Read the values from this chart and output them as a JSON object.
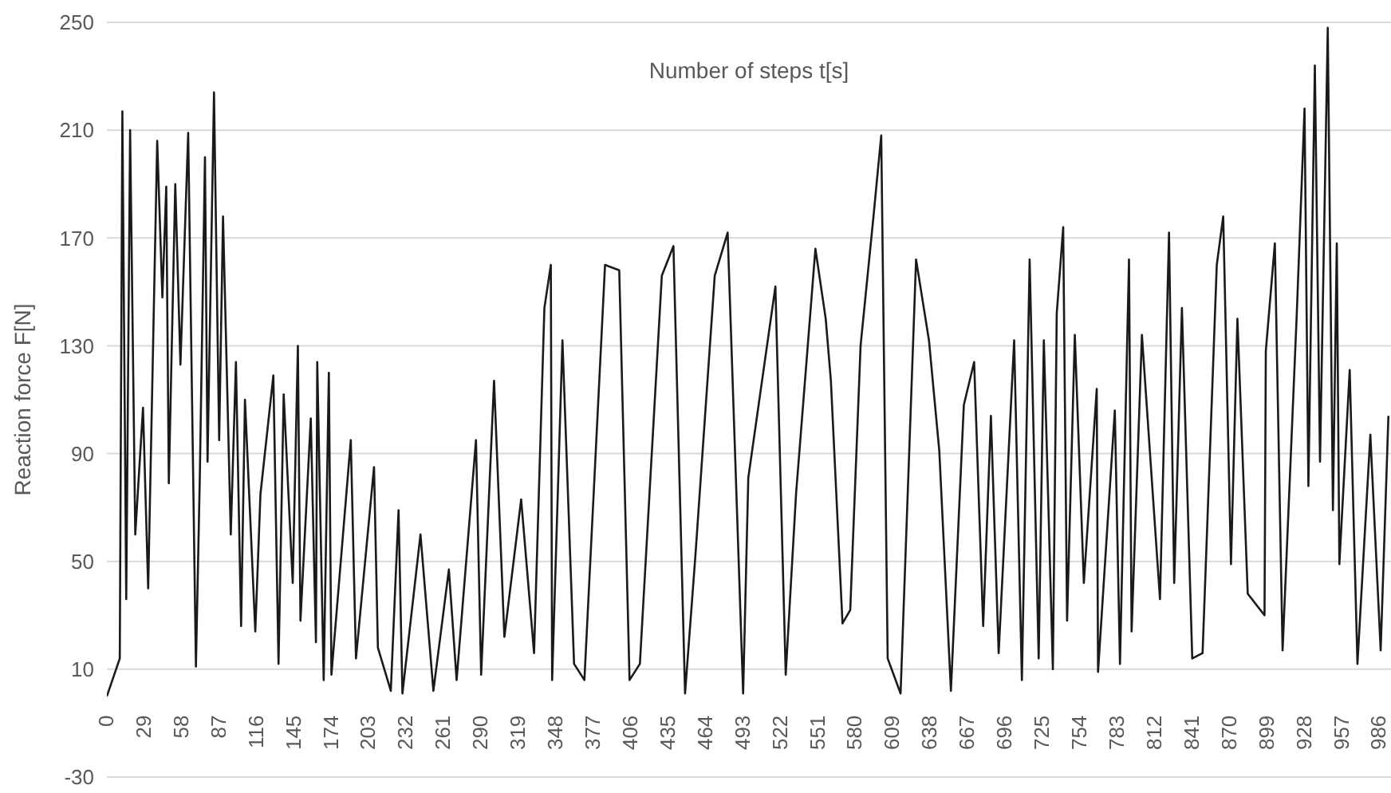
{
  "chart_data": {
    "type": "line",
    "title": "Number of steps t[s]",
    "ylabel": "Reaction force F[N]",
    "xlim": [
      0,
      995
    ],
    "xticks": [
      0,
      29,
      58,
      87,
      116,
      145,
      174,
      203,
      232,
      261,
      290,
      319,
      348,
      377,
      406,
      435,
      464,
      493,
      522,
      551,
      580,
      609,
      638,
      667,
      696,
      725,
      754,
      783,
      812,
      841,
      870,
      899,
      928,
      957,
      986
    ],
    "ylim": [
      -30,
      250
    ],
    "yticks": [
      -30,
      10,
      50,
      90,
      130,
      170,
      210,
      250
    ],
    "grid": "y",
    "series": [
      {
        "color": "#1a1a1a",
        "x": [
          0,
          10,
          12,
          15,
          18,
          22,
          28,
          32,
          39,
          43,
          46,
          48,
          53,
          57,
          63,
          69,
          72,
          76,
          78,
          83,
          87,
          90,
          96,
          100,
          104,
          107,
          115,
          119,
          129,
          133,
          137,
          144,
          148,
          150,
          158,
          162,
          163,
          168,
          172,
          174,
          189,
          193,
          207,
          210,
          220,
          226,
          229,
          243,
          253,
          265,
          271,
          286,
          290,
          300,
          308,
          321,
          331,
          339,
          344,
          345,
          353,
          362,
          370,
          386,
          397,
          405,
          413,
          430,
          439,
          448,
          456,
          471,
          481,
          493,
          497,
          518,
          526,
          534,
          549,
          557,
          561,
          570,
          576,
          584,
          594,
          600,
          605,
          615,
          627,
          637,
          645,
          654,
          664,
          672,
          679,
          685,
          691,
          703,
          709,
          715,
          722,
          726,
          733,
          736,
          741,
          744,
          750,
          757,
          767,
          768,
          781,
          785,
          792,
          794,
          802,
          816,
          823,
          827,
          833,
          841,
          849,
          860,
          865,
          871,
          876,
          884,
          897,
          898,
          905,
          911,
          922,
          928,
          931,
          936,
          940,
          946,
          950,
          953,
          955,
          963,
          969,
          979,
          987,
          993
        ],
        "values": [
          0,
          14,
          217,
          36,
          210,
          60,
          107,
          40,
          206,
          148,
          189,
          79,
          190,
          123,
          209,
          11,
          81,
          200,
          87,
          224,
          95,
          178,
          60,
          124,
          26,
          110,
          24,
          75,
          119,
          12,
          112,
          42,
          130,
          28,
          103,
          20,
          124,
          6,
          120,
          8,
          95,
          14,
          85,
          18,
          2,
          69,
          1,
          60,
          2,
          47,
          6,
          95,
          8,
          117,
          22,
          73,
          16,
          144,
          160,
          6,
          132,
          12,
          6,
          160,
          158,
          6,
          12,
          156,
          167,
          1,
          52,
          156,
          172,
          1,
          81,
          152,
          8,
          75,
          166,
          140,
          117,
          27,
          32,
          130,
          178,
          208,
          14,
          1,
          162,
          132,
          91,
          2,
          108,
          124,
          26,
          104,
          16,
          132,
          6,
          162,
          14,
          132,
          10,
          142,
          174,
          28,
          134,
          42,
          114,
          9,
          106,
          12,
          162,
          24,
          134,
          36,
          172,
          42,
          144,
          14,
          16,
          160,
          178,
          49,
          140,
          38,
          30,
          128,
          168,
          17,
          142,
          218,
          78,
          234,
          87,
          248,
          69,
          168,
          49,
          121,
          12,
          97,
          17,
          104
        ]
      }
    ]
  }
}
